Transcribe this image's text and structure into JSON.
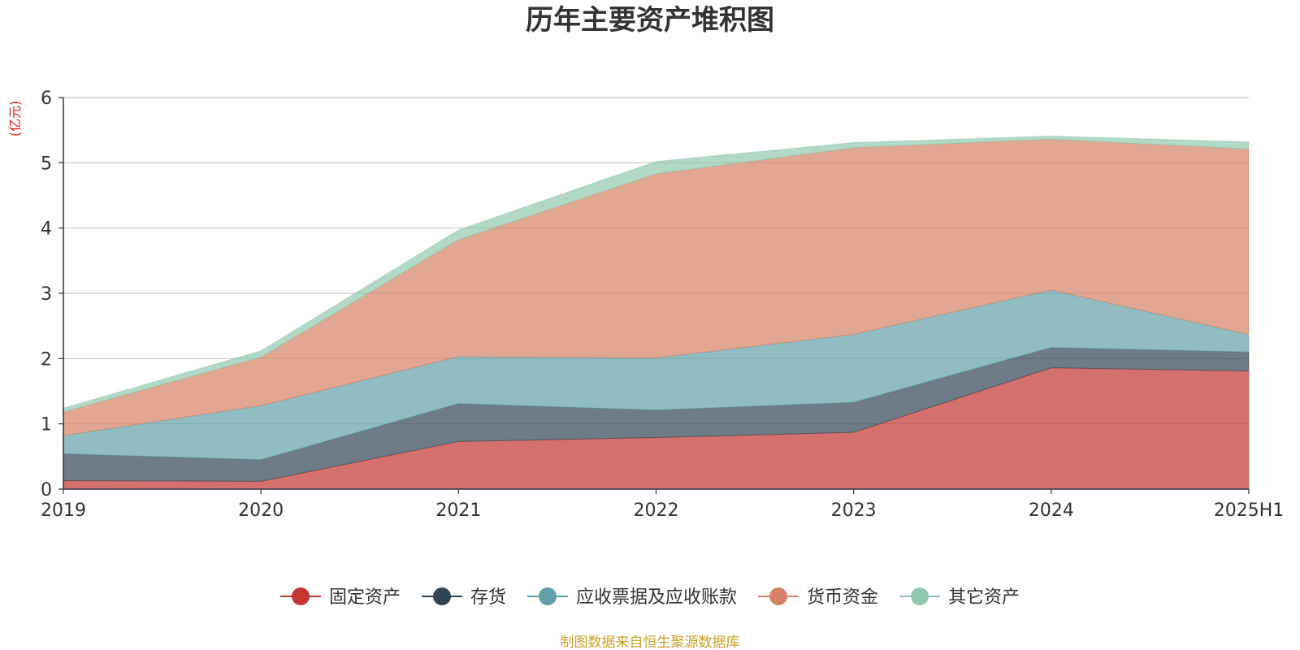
{
  "chart_data": {
    "type": "area",
    "stacked": true,
    "title": "历年主要资产堆积图",
    "unit_label": "(亿元)",
    "categories": [
      "2019",
      "2020",
      "2021",
      "2022",
      "2023",
      "2024",
      "2025H1"
    ],
    "ylim": [
      0,
      6
    ],
    "yticks": [
      "0",
      "1",
      "2",
      "3",
      "4",
      "5",
      "6"
    ],
    "grid": true,
    "legend_position": "bottom",
    "series": [
      {
        "name": "固定资产",
        "color": "#c23531",
        "values": [
          0.13,
          0.12,
          0.73,
          0.79,
          0.87,
          1.86,
          1.81
        ]
      },
      {
        "name": "存货",
        "color": "#2f4554",
        "values": [
          0.41,
          0.33,
          0.58,
          0.42,
          0.46,
          0.31,
          0.29
        ]
      },
      {
        "name": "应收票据及应收账款",
        "color": "#61a0a8",
        "values": [
          0.28,
          0.83,
          0.72,
          0.8,
          1.04,
          0.88,
          0.27
        ]
      },
      {
        "name": "货币资金",
        "color": "#d48265",
        "values": [
          0.36,
          0.74,
          1.79,
          2.82,
          2.86,
          2.31,
          2.84
        ]
      },
      {
        "name": "其它资产",
        "color": "#91c7ae",
        "values": [
          0.06,
          0.1,
          0.15,
          0.19,
          0.08,
          0.05,
          0.11
        ]
      }
    ]
  },
  "footer": {
    "source": "制图数据来自恒生聚源数据库"
  }
}
